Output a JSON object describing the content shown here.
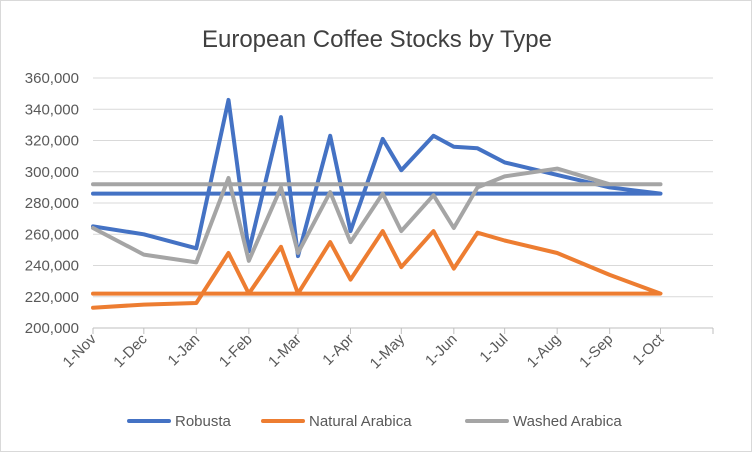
{
  "chart_data": {
    "type": "line",
    "title": "European Coffee Stocks by Type",
    "xlabel": "",
    "ylabel": "",
    "x_tick_labels": [
      "1-Nov",
      "1-Dec",
      "1-Jan",
      "1-Feb",
      "1-Mar",
      "1-Apr",
      "1-May",
      "1-Jun",
      "1-Jul",
      "1-Aug",
      "1-Sep",
      "1-Oct"
    ],
    "y_tick_labels": [
      "200,000",
      "220,000",
      "240,000",
      "260,000",
      "280,000",
      "300,000",
      "320,000",
      "340,000",
      "360,000"
    ],
    "ylim": [
      200000,
      360000
    ],
    "xlim": [
      "1-Nov",
      "1-Nov"
    ],
    "grid": "horizontal",
    "legend_position": "bottom",
    "x": [
      "1-Nov",
      "1-Dec",
      "1-Jan",
      "20-Jan",
      "1-Feb",
      "20-Feb",
      "1-Mar",
      "20-Mar",
      "1-Apr",
      "20-Apr",
      "1-May",
      "20-May",
      "1-Jun",
      "15-Jun",
      "1-Jul",
      "1-Aug",
      "1-Sep",
      "1-Oct",
      "1-Nov"
    ],
    "series": [
      {
        "name": "Robusta",
        "color": "#4472c4",
        "values": [
          265000,
          260000,
          251000,
          346000,
          249000,
          335000,
          246000,
          323000,
          262000,
          321000,
          301000,
          323000,
          316000,
          315000,
          306000,
          298000,
          290000,
          286000,
          286000
        ]
      },
      {
        "name": "Natural Arabica",
        "color": "#ed7d31",
        "values": [
          213000,
          215000,
          216000,
          248000,
          222000,
          252000,
          222000,
          255000,
          231000,
          262000,
          239000,
          262000,
          238000,
          261000,
          256000,
          248000,
          234000,
          222000,
          222000
        ]
      },
      {
        "name": "Washed Arabica",
        "color": "#a5a5a5",
        "values": [
          264000,
          247000,
          242000,
          296000,
          243000,
          290000,
          248000,
          287000,
          255000,
          286000,
          262000,
          285000,
          264000,
          290000,
          297000,
          302000,
          292000,
          292000,
          292000
        ]
      }
    ]
  }
}
